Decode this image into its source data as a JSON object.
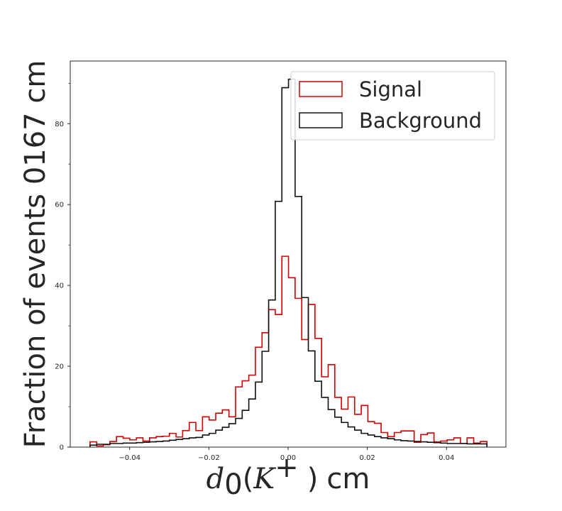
{
  "chart_data": {
    "type": "histogram",
    "title": "",
    "ylabel": "Fraction of events 0167 cm",
    "xlabel": {
      "symbol": "d",
      "subscript": "0",
      "open": "(",
      "particle": "K",
      "superscript": "+",
      "close": ")",
      "unit": "cm"
    },
    "xlim": [
      -0.055,
      0.055
    ],
    "ylim": [
      0,
      95.5
    ],
    "x_ticks": [
      -0.04,
      -0.02,
      0.0,
      0.02,
      0.04
    ],
    "x_tick_labels": [
      "−0.04",
      "−0.02",
      "0.00",
      "0.02",
      "0.04"
    ],
    "y_ticks": [
      0,
      20,
      40,
      60,
      80
    ],
    "y_tick_labels": [
      "0",
      "20",
      "40",
      "60",
      "80"
    ],
    "y_minor_ticks": [
      10,
      30,
      50,
      70,
      90
    ],
    "bin_edges_start": -0.05,
    "bin_width": 0.00167,
    "legend_position": "top-right",
    "series": [
      {
        "name": "Signal",
        "color": "#d00000",
        "values": [
          1.3,
          0.3,
          0.6,
          1.4,
          2.6,
          2.2,
          1.8,
          2.3,
          1.5,
          2.3,
          2.6,
          2.7,
          3.4,
          2.5,
          4.1,
          6.1,
          4.1,
          7.5,
          6.7,
          8.4,
          9.2,
          7.5,
          14.9,
          16.4,
          17.8,
          24.7,
          28.3,
          34.0,
          32.8,
          47.2,
          41.9,
          36.8,
          26.6,
          35.3,
          26.9,
          17.4,
          20.4,
          12.3,
          9.4,
          12.4,
          8.1,
          10.3,
          6.3,
          5.9,
          3.6,
          2.6,
          3.6,
          4.0,
          4.0,
          1.2,
          3.1,
          3.5,
          1.3,
          1.5,
          1.8,
          2.3,
          0.9,
          2.3,
          1.0,
          1.4
        ]
      },
      {
        "name": "Background",
        "color": "#111111",
        "values": [
          0.5,
          0.7,
          0.7,
          0.9,
          0.9,
          1.0,
          1.0,
          1.1,
          1.2,
          1.3,
          1.4,
          1.5,
          1.7,
          1.9,
          2.1,
          2.3,
          2.4,
          3.0,
          3.4,
          4.2,
          4.9,
          5.8,
          7.1,
          9.1,
          11.9,
          16.1,
          23.7,
          36.4,
          60.8,
          88.9,
          91.0,
          62.0,
          37.0,
          23.8,
          16.3,
          12.3,
          9.3,
          7.4,
          6.1,
          5.0,
          4.2,
          3.4,
          3.0,
          2.6,
          2.3,
          2.1,
          1.8,
          1.6,
          1.5,
          1.4,
          1.3,
          1.2,
          1.1,
          1.0,
          0.9,
          0.9,
          0.9,
          0.8,
          0.8,
          0.8
        ]
      }
    ]
  }
}
